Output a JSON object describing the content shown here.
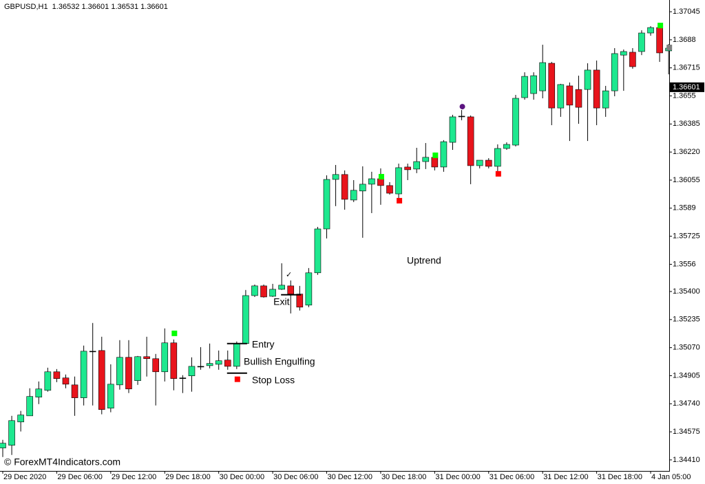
{
  "chart_data": {
    "type": "candlestick",
    "title": "GBPUSD,H1  1.36532 1.36601 1.36531 1.36601",
    "categories": [
      "29 Dec 2020",
      null,
      null,
      null,
      null,
      null,
      "29 Dec 06:00",
      null,
      null,
      null,
      null,
      null,
      "29 Dec 12:00",
      null,
      null,
      null,
      null,
      null,
      "29 Dec 18:00",
      null,
      null,
      null,
      null,
      null,
      "30 Dec 00:00",
      null,
      null,
      null,
      null,
      null,
      "30 Dec 06:00",
      null,
      null,
      null,
      null,
      null,
      "30 Dec 12:00",
      null,
      null,
      null,
      null,
      null,
      "30 Dec 18:00",
      null,
      null,
      null,
      null,
      null,
      "31 Dec 00:00",
      null,
      null,
      null,
      null,
      null,
      "31 Dec 06:00",
      null,
      null,
      null,
      null,
      null,
      "31 Dec 12:00",
      null,
      null,
      null,
      null,
      null,
      "31 Dec 18:00",
      null,
      null,
      null,
      null,
      null,
      "4 Jan 05:00",
      null,
      null
    ],
    "open": [
      1.3448,
      1.34496,
      1.34633,
      1.34669,
      1.34779,
      1.34819,
      1.34928,
      1.34892,
      1.34851,
      1.34775,
      1.35049,
      1.35053,
      1.34714,
      1.34851,
      1.35013,
      1.34876,
      1.35017,
      1.35005,
      1.34928,
      1.35098,
      1.34892,
      1.34904,
      1.3496,
      1.34964,
      1.34972,
      1.34997,
      1.3496,
      1.35094,
      1.35376,
      1.35433,
      1.35372,
      1.35413,
      1.35433,
      1.35385,
      1.3532,
      1.3551,
      1.35768,
      1.36059,
      1.36088,
      1.35938,
      1.35991,
      1.36031,
      1.36063,
      1.36023,
      1.35974,
      1.36132,
      1.3612,
      1.36164,
      1.36189,
      1.36132,
      1.36277,
      1.36431,
      1.36427,
      1.3614,
      1.36172,
      1.36136,
      1.36241,
      1.36261,
      1.3654,
      1.36564,
      1.3658,
      1.36742,
      1.36479,
      1.36609,
      1.36588,
      1.36588,
      1.36702,
      1.36479,
      1.3658,
      1.3679,
      1.36807,
      1.36811,
      1.3692,
      1.36952,
      1.36815
    ],
    "high": [
      1.34528,
      1.34669,
      1.34698,
      1.34831,
      1.34871,
      1.34952,
      1.34944,
      1.34912,
      1.349,
      1.35082,
      1.35215,
      1.35134,
      1.34972,
      1.35114,
      1.35114,
      1.35021,
      1.35134,
      1.35033,
      1.35183,
      1.35118,
      1.34908,
      1.35013,
      1.35073,
      1.35094,
      1.35053,
      1.35053,
      1.35106,
      1.35409,
      1.35441,
      1.35441,
      1.35445,
      1.35566,
      1.35465,
      1.35433,
      1.35538,
      1.3578,
      1.36083,
      1.36144,
      1.36112,
      1.36055,
      1.36136,
      1.36104,
      1.36124,
      1.36043,
      1.36152,
      1.36152,
      1.36245,
      1.36273,
      1.36217,
      1.3629,
      1.36439,
      1.36467,
      1.36435,
      1.36172,
      1.36184,
      1.36265,
      1.36277,
      1.36556,
      1.36689,
      1.36689,
      1.36851,
      1.3675,
      1.36621,
      1.36629,
      1.36669,
      1.36742,
      1.36758,
      1.36609,
      1.36831,
      1.36823,
      1.36831,
      1.36936,
      1.3696,
      1.36972,
      1.36855
    ],
    "low": [
      1.34427,
      1.34439,
      1.34577,
      1.34669,
      1.34738,
      1.34811,
      1.34867,
      1.34831,
      1.34669,
      1.3473,
      1.3473,
      1.34678,
      1.3469,
      1.34823,
      1.34803,
      1.34851,
      1.349,
      1.3473,
      1.34871,
      1.34819,
      1.34803,
      1.34811,
      1.3494,
      1.34948,
      1.3494,
      1.3494,
      1.34944,
      1.35094,
      1.35368,
      1.35364,
      1.35368,
      1.35409,
      1.35271,
      1.35288,
      1.35308,
      1.35498,
      1.35712,
      1.35902,
      1.35881,
      1.35926,
      1.35716,
      1.35861,
      1.3591,
      1.3597,
      1.3595,
      1.36055,
      1.36096,
      1.3612,
      1.36112,
      1.36104,
      1.36233,
      1.36407,
      1.36031,
      1.36124,
      1.36124,
      1.36104,
      1.36233,
      1.36253,
      1.36528,
      1.36528,
      1.36536,
      1.36378,
      1.36427,
      1.36285,
      1.36386,
      1.36285,
      1.36378,
      1.36427,
      1.36548,
      1.3658,
      1.3671,
      1.3679,
      1.36904,
      1.3675,
      1.36677
    ],
    "close": [
      1.34508,
      1.34641,
      1.34674,
      1.34783,
      1.34827,
      1.34928,
      1.34888,
      1.34855,
      1.34775,
      1.35049,
      1.35049,
      1.34706,
      1.34855,
      1.35013,
      1.34827,
      1.35017,
      1.35005,
      1.34928,
      1.35098,
      1.34888,
      1.34892,
      1.3496,
      1.3496,
      1.34977,
      1.34993,
      1.3496,
      1.35094,
      1.35376,
      1.35433,
      1.35368,
      1.35413,
      1.35437,
      1.35385,
      1.35308,
      1.3551,
      1.35768,
      1.36059,
      1.36088,
      1.35942,
      1.35995,
      1.36031,
      1.36063,
      1.36023,
      1.35978,
      1.36128,
      1.36116,
      1.36164,
      1.36189,
      1.36132,
      1.36281,
      1.36427,
      1.36431,
      1.3614,
      1.36172,
      1.36136,
      1.36241,
      1.36265,
      1.36536,
      1.36665,
      1.36669,
      1.36746,
      1.36479,
      1.36617,
      1.36496,
      1.36483,
      1.36702,
      1.36479,
      1.3658,
      1.36799,
      1.36811,
      1.36722,
      1.3692,
      1.36952,
      1.36803,
      1.36831
    ],
    "up_color": "#1ee88f",
    "down_color": "#e8141c",
    "doji_color": "#000000",
    "ylim": [
      1.34345,
      1.37114
    ],
    "yticks": [
      1.37045,
      1.3688,
      1.36715,
      1.3655,
      1.36385,
      {
        "value": 1.3622,
        "label": "1.36220"
      },
      1.36055,
      1.3589,
      1.35725,
      1.3556,
      {
        "value": 1.354,
        "label": "1.35400"
      },
      1.35235,
      {
        "value": 1.3507,
        "label": "1.35070"
      },
      1.34905,
      {
        "value": 1.3474,
        "label": "1.34740"
      },
      1.34575,
      {
        "value": 1.3441,
        "label": "1.34410"
      }
    ],
    "current_price": 1.36601,
    "markers": [
      {
        "index": 19,
        "value": 1.35154,
        "color": "#00ff00",
        "shape": "square"
      },
      {
        "index": 26,
        "value": 1.34884,
        "color": "#ff0000",
        "shape": "square"
      },
      {
        "index": 42,
        "value": 1.36075,
        "color": "#00ff00",
        "shape": "square"
      },
      {
        "index": 44,
        "value": 1.35934,
        "color": "#ff0000",
        "shape": "square"
      },
      {
        "index": 48,
        "value": 1.36201,
        "color": "#00ff00",
        "shape": "square"
      },
      {
        "index": 51,
        "value": 1.36487,
        "color": "#5b1380",
        "shape": "circle"
      },
      {
        "index": 55,
        "value": 1.36092,
        "color": "#ff0000",
        "shape": "square"
      },
      {
        "index": 73,
        "value": 1.36964,
        "color": "#00ff00",
        "shape": "square"
      },
      {
        "index": 74,
        "value": 1.36835,
        "color": "#808080",
        "shape": "square"
      }
    ],
    "levels": [
      {
        "name": "Entry",
        "value": 1.35094,
        "from": 25,
        "to": 27
      },
      {
        "name": "Stop Loss",
        "value": 1.3492,
        "from": 25,
        "to": 27
      },
      {
        "name": "Exit",
        "value": 1.35381,
        "from": 31,
        "to": 33
      }
    ],
    "annotations": [
      "Bullish Engulfing",
      "Uptrend"
    ]
  },
  "watermark": "© ForexMT4Indicators.com"
}
